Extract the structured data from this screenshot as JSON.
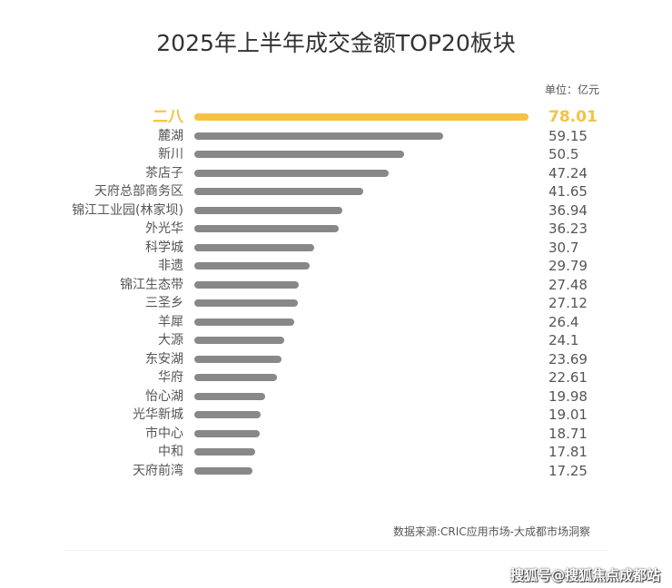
{
  "chart_data": {
    "type": "bar",
    "orientation": "horizontal",
    "title": "2025年上半年成交金额TOP20板块",
    "unit_label": "单位：亿元",
    "categories": [
      "二八",
      "麓湖",
      "新川",
      "茶店子",
      "天府总部商务区",
      "锦江工业园(林家坝)",
      "外光华",
      "科学城",
      "非遗",
      "锦江生态带",
      "三圣乡",
      "羊犀",
      "大源",
      "东安湖",
      "华府",
      "怡心湖",
      "光华新城",
      "市中心",
      "中和",
      "天府前湾"
    ],
    "values": [
      78.01,
      59.15,
      50.5,
      47.24,
      41.65,
      36.94,
      36.23,
      30.7,
      29.79,
      27.48,
      27.12,
      26.4,
      24.1,
      23.69,
      22.61,
      19.98,
      19.01,
      18.71,
      17.81,
      17.25
    ],
    "highlight_index": 0,
    "colors": {
      "highlight": "#f5c242",
      "bar": "#888888"
    },
    "grid": false,
    "source": "数据来源:CRIC应用市场-大成都市场洞察"
  },
  "watermark": "搜狐号@搜狐焦点成都站"
}
